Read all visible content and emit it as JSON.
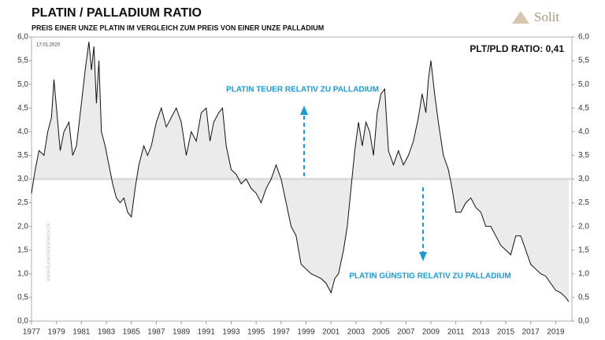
{
  "chart_data": {
    "type": "line",
    "title": "PLATIN / PALLADIUM RATIO",
    "subtitle": "PREIS EINER UNZE  PLATIN IM VERGLEICH ZUM PREIS VON EINER UNZE PALLADIUM",
    "date_label": "17.01.2020",
    "ratio_label": "PLT/PLD RATIO: 0,41",
    "annotations": [
      "PLATIN TEUER RELATIV ZU PALLADIUM",
      "PLATIN GÜNSTIG RELATIV ZU PALLADIUM"
    ],
    "watermark": "WWW.BLASHZKRESEARCH.DE",
    "logo": "Solit",
    "fill_baseline": 3,
    "x": [
      1977.0,
      1977.3,
      1977.6,
      1978.0,
      1978.3,
      1978.6,
      1978.8,
      1979.0,
      1979.3,
      1979.6,
      1980.0,
      1980.3,
      1980.6,
      1981.0,
      1981.3,
      1981.6,
      1981.8,
      1982.0,
      1982.2,
      1982.4,
      1982.6,
      1982.9,
      1983.2,
      1983.5,
      1983.8,
      1984.1,
      1984.4,
      1984.7,
      1985.0,
      1985.3,
      1985.6,
      1986.0,
      1986.3,
      1986.6,
      1987.0,
      1987.4,
      1987.8,
      1988.2,
      1988.6,
      1989.0,
      1989.4,
      1989.8,
      1990.2,
      1990.6,
      1991.0,
      1991.3,
      1991.6,
      1992.0,
      1992.3,
      1992.6,
      1993.0,
      1993.4,
      1993.8,
      1994.2,
      1994.6,
      1995.0,
      1995.4,
      1995.8,
      1996.2,
      1996.6,
      1997.0,
      1997.4,
      1997.8,
      1998.2,
      1998.6,
      1999.0,
      1999.4,
      1999.8,
      2000.2,
      2000.6,
      2001.0,
      2001.3,
      2001.6,
      2002.0,
      2002.3,
      2002.6,
      2002.9,
      2003.2,
      2003.5,
      2003.8,
      2004.1,
      2004.4,
      2004.7,
      2005.0,
      2005.3,
      2005.6,
      2006.0,
      2006.4,
      2006.8,
      2007.2,
      2007.6,
      2008.0,
      2008.3,
      2008.6,
      2008.8,
      2009.0,
      2009.3,
      2009.6,
      2010.0,
      2010.4,
      2010.7,
      2011.0,
      2011.4,
      2011.8,
      2012.2,
      2012.6,
      2013.0,
      2013.4,
      2013.8,
      2014.2,
      2014.6,
      2015.0,
      2015.4,
      2015.8,
      2016.2,
      2016.6,
      2017.0,
      2017.4,
      2017.8,
      2018.2,
      2018.6,
      2019.0,
      2019.4,
      2019.8,
      2020.05
    ],
    "series": [
      {
        "color": "#111111",
        "values": [
          2.7,
          3.2,
          3.6,
          3.5,
          4.0,
          4.3,
          5.1,
          4.5,
          3.6,
          4.0,
          4.2,
          3.5,
          3.7,
          4.6,
          5.3,
          5.9,
          5.3,
          5.8,
          4.6,
          5.5,
          4.0,
          3.7,
          3.3,
          2.9,
          2.6,
          2.5,
          2.6,
          2.3,
          2.2,
          2.8,
          3.3,
          3.7,
          3.5,
          3.7,
          4.2,
          4.5,
          4.1,
          4.3,
          4.5,
          4.2,
          3.5,
          4.0,
          3.8,
          4.4,
          4.5,
          3.8,
          4.2,
          4.4,
          4.5,
          3.7,
          3.2,
          3.1,
          2.9,
          3.0,
          2.8,
          2.7,
          2.5,
          2.8,
          3.0,
          3.3,
          3.0,
          2.5,
          2.0,
          1.8,
          1.2,
          1.1,
          1.0,
          0.95,
          0.9,
          0.8,
          0.6,
          0.9,
          1.0,
          1.5,
          2.0,
          2.8,
          3.6,
          4.2,
          3.7,
          4.2,
          4.0,
          3.5,
          4.4,
          4.8,
          4.9,
          3.6,
          3.3,
          3.6,
          3.3,
          3.5,
          3.8,
          4.3,
          4.8,
          4.4,
          5.1,
          5.5,
          4.8,
          4.2,
          3.5,
          3.2,
          2.8,
          2.3,
          2.3,
          2.5,
          2.6,
          2.4,
          2.3,
          2.0,
          2.0,
          1.8,
          1.6,
          1.5,
          1.4,
          1.8,
          1.8,
          1.5,
          1.2,
          1.1,
          1.0,
          0.95,
          0.8,
          0.65,
          0.6,
          0.5,
          0.41
        ]
      }
    ],
    "xlim": [
      1977,
      2020.3
    ],
    "xticks": [
      1977,
      1979,
      1981,
      1983,
      1985,
      1987,
      1989,
      1991,
      1993,
      1995,
      1997,
      1999,
      2001,
      2003,
      2005,
      2007,
      2009,
      2011,
      2013,
      2015,
      2017,
      2019
    ],
    "ylim": [
      0,
      6
    ],
    "yticks": [
      {
        "value": 0,
        "label": "0,0"
      },
      {
        "value": 0.5,
        "label": "0,5"
      },
      {
        "value": 1,
        "label": "1,0"
      },
      {
        "value": 1.5,
        "label": "1,5"
      },
      {
        "value": 2,
        "label": "2,0"
      },
      {
        "value": 2.5,
        "label": "2,5"
      },
      {
        "value": 3,
        "label": "3,0"
      },
      {
        "value": 3.5,
        "label": "3,5"
      },
      {
        "value": 4,
        "label": "4,0"
      },
      {
        "value": 4.5,
        "label": "4,5"
      },
      {
        "value": 5,
        "label": "5,0"
      },
      {
        "value": 5.5,
        "label": "5,5"
      },
      {
        "value": 6,
        "label": "6,0"
      }
    ],
    "y2lim": [
      0,
      6
    ],
    "y2ticks": [
      {
        "value": 0,
        "label": "0,0"
      },
      {
        "value": 0.5,
        "label": "0,5"
      },
      {
        "value": 1,
        "label": "1,0"
      },
      {
        "value": 1.5,
        "label": "1,5"
      },
      {
        "value": 2,
        "label": "2,0"
      },
      {
        "value": 2.5,
        "label": "2,5"
      },
      {
        "value": 3,
        "label": "3,0"
      },
      {
        "value": 3.5,
        "label": "3,5"
      },
      {
        "value": 4,
        "label": "4,0"
      },
      {
        "value": 4.5,
        "label": "4,5"
      },
      {
        "value": 5,
        "label": "5,0"
      },
      {
        "value": 5.5,
        "label": "5,5"
      },
      {
        "value": 6,
        "label": "6,0"
      }
    ]
  }
}
